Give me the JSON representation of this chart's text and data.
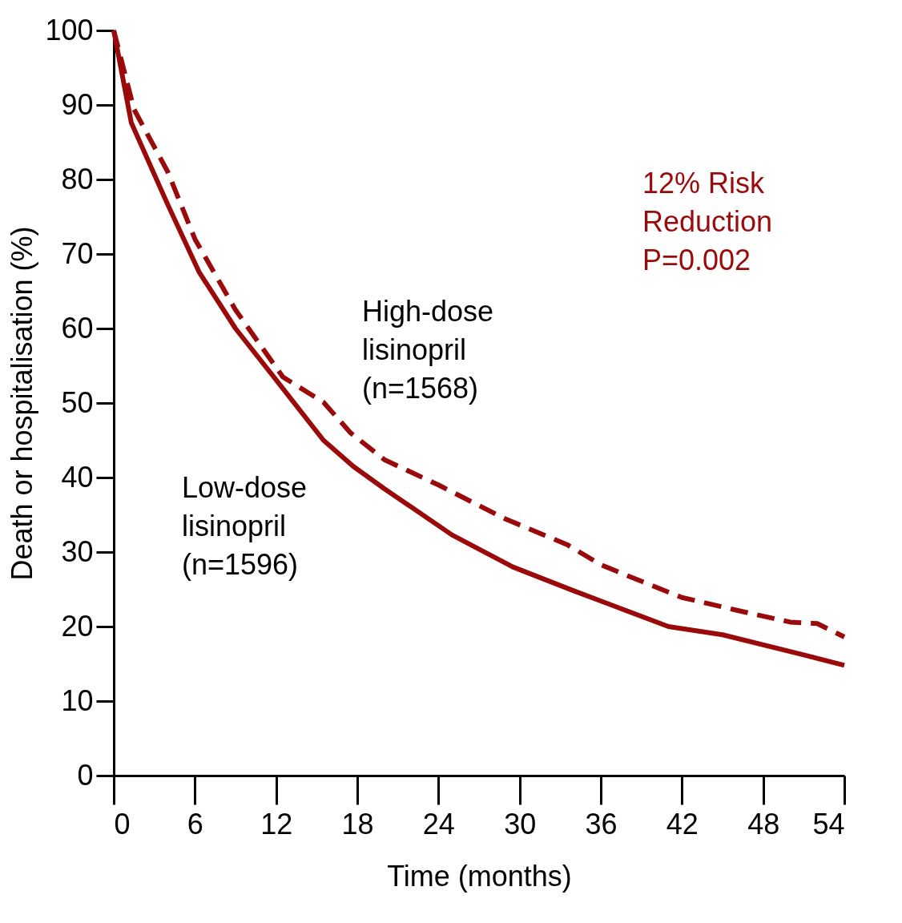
{
  "chart_data": {
    "type": "line",
    "xlabel": "Time (months)",
    "ylabel": "Death or hospitalisation (%)",
    "xlim": [
      0,
      54
    ],
    "xticks": [
      0,
      6,
      12,
      18,
      24,
      30,
      36,
      42,
      48,
      54
    ],
    "ylim": [
      0,
      100
    ],
    "yticks": [
      0,
      10,
      20,
      30,
      40,
      50,
      60,
      70,
      80,
      90,
      100
    ],
    "grid": false,
    "legend": false,
    "marker": "none",
    "series": [
      {
        "name": "Low-dose\nlisinopril\n(n=1596)",
        "color": "#9b0a0a",
        "line_style": "solid",
        "x": [
          0,
          1.3,
          4,
          6.3,
          9,
          12,
          15.5,
          17.7,
          20,
          25,
          29.5,
          34,
          41,
          45,
          51,
          54
        ],
        "values": [
          100,
          87.6,
          76.6,
          67.6,
          60,
          53.1,
          45,
          41.5,
          38.5,
          32.3,
          28,
          24.8,
          20,
          18.9,
          16.2,
          14.8
        ]
      },
      {
        "name": "High-dose\nlisinopril\n(n=1568)",
        "color": "#9b0a0a",
        "line_style": "dashed",
        "x": [
          0,
          1.5,
          4,
          6,
          9,
          12.5,
          15.5,
          17.5,
          20,
          24,
          29,
          33.5,
          36,
          38,
          42,
          46,
          50,
          52,
          54
        ],
        "values": [
          100,
          89.4,
          81,
          72,
          62.5,
          53.5,
          50.1,
          46,
          42.4,
          39,
          34.4,
          31,
          28.3,
          26.8,
          23.9,
          22.2,
          20.6,
          20.4,
          18.6
        ]
      }
    ],
    "annotations": [
      "12% Risk\nReduction\nP=0.002"
    ]
  }
}
